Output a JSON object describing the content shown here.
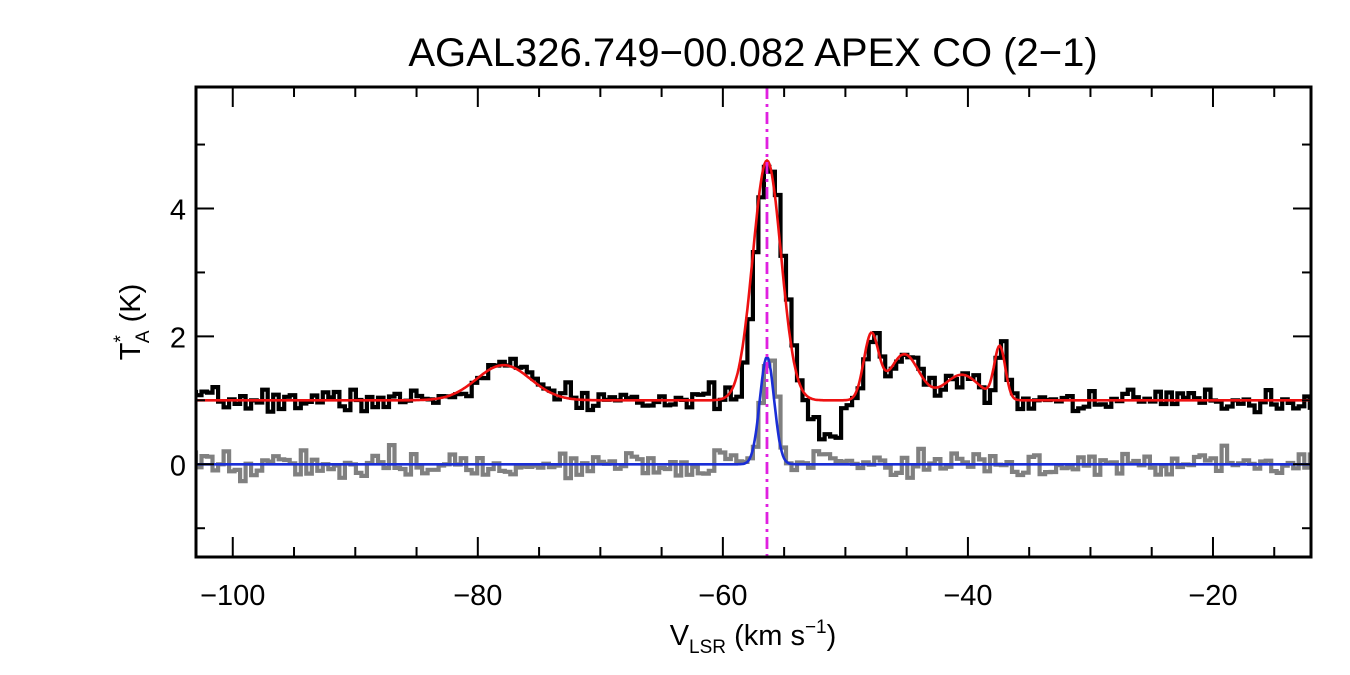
{
  "chart_data": {
    "type": "line",
    "title": "AGAL326.749−00.082  APEX CO (2−1)",
    "xlabel": {
      "main": "V",
      "sub": "LSR",
      "unit": " (km s",
      "exp": "−1",
      "close": ")"
    },
    "ylabel": {
      "main": "T",
      "sup": "*",
      "sub": "A",
      "unit": " (K)"
    },
    "xlim": [
      -103,
      -12
    ],
    "ylim": [
      -1.45,
      5.9
    ],
    "x_ticks": [
      -100,
      -80,
      -60,
      -40,
      -20
    ],
    "x_tick_labels": [
      "−100",
      "−80",
      "−60",
      "−40",
      "−20"
    ],
    "x_minor_step": 5,
    "y_ticks": [
      0,
      2,
      4
    ],
    "y_tick_labels": [
      "0",
      "2",
      "4"
    ],
    "y_minor_ticks": [
      -1,
      1,
      3,
      5
    ],
    "grid": false,
    "legend": "none",
    "reference_line": {
      "x": -56.4,
      "color": "#e020e0",
      "style": "dash-dot"
    },
    "series": [
      {
        "role": "observed-spectrum-offset",
        "color": "#000000",
        "step": true,
        "baseline_offset": 1.0,
        "noise_rms": 0.09,
        "seed": 7,
        "components": [
          {
            "amp": 0.55,
            "center": -77.9,
            "sigma": 2.2
          },
          {
            "amp": 3.75,
            "center": -56.4,
            "sigma": 1.1
          },
          {
            "amp": -0.62,
            "center": -51.8,
            "sigma": 0.9
          },
          {
            "amp": 1.0,
            "center": -47.9,
            "sigma": 0.6
          },
          {
            "amp": 0.75,
            "center": -45.2,
            "sigma": 1.2
          },
          {
            "amp": 0.4,
            "center": -40.5,
            "sigma": 1.4
          },
          {
            "amp": 0.85,
            "center": -37.4,
            "sigma": 0.45
          }
        ]
      },
      {
        "role": "fit-offset",
        "color": "#ee1111",
        "step": false,
        "baseline_offset": 1.0,
        "components": [
          {
            "amp": 0.55,
            "center": -77.9,
            "sigma": 2.2
          },
          {
            "amp": 3.75,
            "center": -56.4,
            "sigma": 1.15
          },
          {
            "amp": 1.0,
            "center": -47.9,
            "sigma": 0.6
          },
          {
            "amp": 0.72,
            "center": -45.2,
            "sigma": 1.2
          },
          {
            "amp": 0.4,
            "center": -40.5,
            "sigma": 1.4
          },
          {
            "amp": 0.82,
            "center": -37.4,
            "sigma": 0.45
          }
        ]
      },
      {
        "role": "observed-spectrum",
        "color": "#808080",
        "step": true,
        "baseline_offset": 0.0,
        "noise_rms": 0.11,
        "seed": 19,
        "components": [
          {
            "amp": 1.7,
            "center": -56.4,
            "sigma": 0.55
          }
        ]
      },
      {
        "role": "fit",
        "color": "#1a2ed6",
        "step": false,
        "baseline_offset": 0.0,
        "components": [
          {
            "amp": 1.68,
            "center": -56.4,
            "sigma": 0.58
          }
        ]
      }
    ]
  }
}
